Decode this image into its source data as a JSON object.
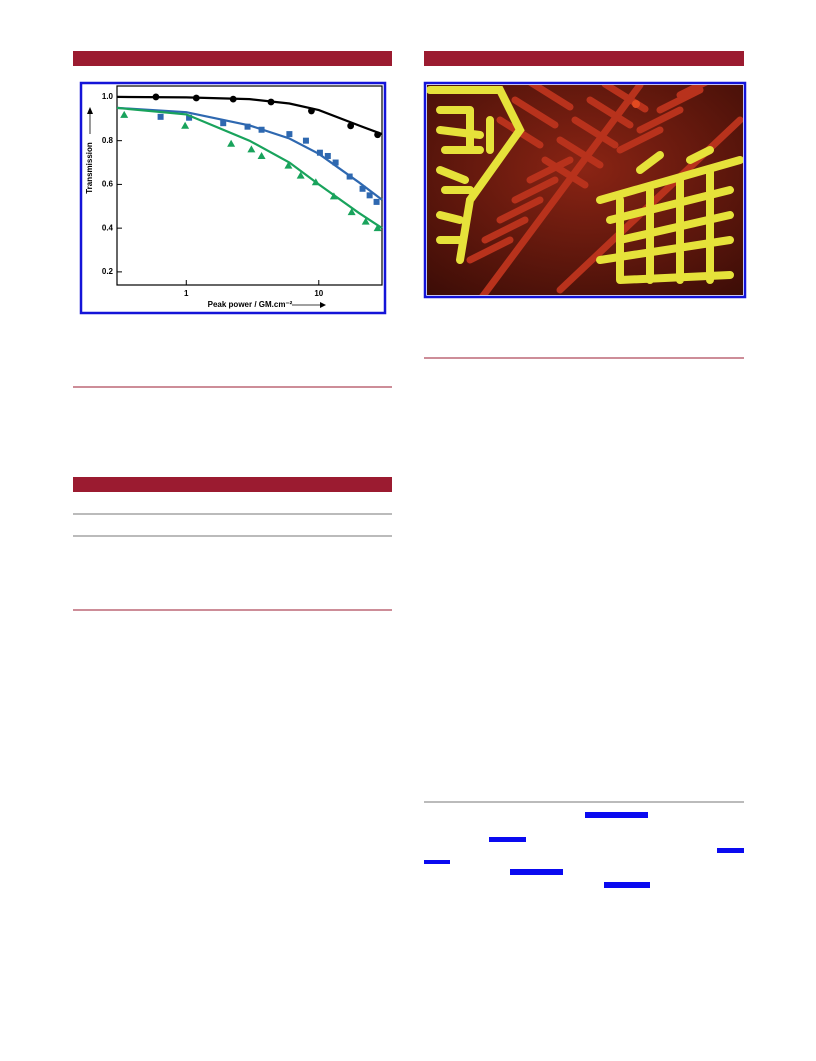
{
  "chart_data": {
    "type": "scatter",
    "xlabel": "Peak power / GM.cm⁻²",
    "ylabel": "Transmission",
    "xscale": "log",
    "xlim": [
      0.3,
      30
    ],
    "ylim": [
      0.14,
      1.05
    ],
    "xticks": [
      1,
      10
    ],
    "yticks": [
      {
        "value": 1.0,
        "label": "1.0"
      },
      0.8,
      0.6,
      0.4,
      0.2
    ],
    "series": [
      {
        "color": "#000000",
        "marker": "circle",
        "x": [
          0.59,
          1.19,
          2.26,
          4.36,
          8.8,
          17.4,
          27.8
        ],
        "values": [
          1.0,
          0.995,
          0.99,
          0.977,
          0.936,
          0.868,
          0.827
        ]
      },
      {
        "color": "#2e68b0",
        "marker": "square",
        "x": [
          0.64,
          1.05,
          1.9,
          2.9,
          3.7,
          6.0,
          8.0,
          10.2,
          11.7,
          13.4,
          17.1,
          21.4,
          24.2,
          27.3
        ],
        "values": [
          0.909,
          0.905,
          0.88,
          0.864,
          0.85,
          0.83,
          0.8,
          0.745,
          0.73,
          0.7,
          0.636,
          0.58,
          0.55,
          0.52
        ]
      },
      {
        "color": "#19a35c",
        "marker": "triangle",
        "x": [
          0.34,
          0.98,
          2.18,
          3.1,
          3.7,
          5.9,
          7.3,
          9.5,
          13,
          17.7,
          22.6,
          27.8
        ],
        "values": [
          0.918,
          0.868,
          0.786,
          0.76,
          0.73,
          0.686,
          0.64,
          0.61,
          0.545,
          0.473,
          0.43,
          0.4
        ]
      },
      {
        "color": "#000000",
        "marker": "line",
        "x": [
          0.3,
          1,
          3,
          6,
          10,
          20,
          30
        ],
        "values": [
          1.0,
          0.998,
          0.99,
          0.97,
          0.94,
          0.87,
          0.83
        ]
      },
      {
        "color": "#2e68b0",
        "marker": "line",
        "x": [
          0.3,
          1,
          3,
          6,
          10,
          20,
          30
        ],
        "values": [
          0.95,
          0.93,
          0.87,
          0.81,
          0.74,
          0.61,
          0.53
        ]
      },
      {
        "color": "#19a35c",
        "marker": "line",
        "x": [
          0.3,
          1,
          3,
          6,
          10,
          20,
          30
        ],
        "values": [
          0.95,
          0.92,
          0.8,
          0.7,
          0.6,
          0.47,
          0.4
        ]
      }
    ]
  }
}
